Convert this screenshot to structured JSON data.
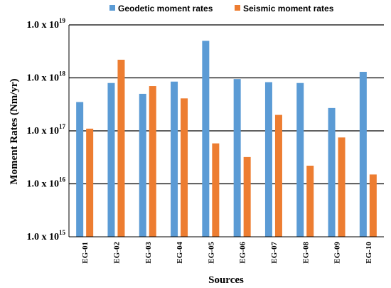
{
  "chart_data": {
    "type": "bar",
    "yscale": "log",
    "ylim": [
      1000000000000000.0,
      1e+19
    ],
    "xlabel": "Sources",
    "ylabel": "Moment Rates (Nm/yr)",
    "grid": "horizontal major lines",
    "legend_position": "top",
    "categories": [
      "EG-01",
      "EG-02",
      "EG-03",
      "EG-04",
      "EG-05",
      "EG-06",
      "EG-07",
      "EG-08",
      "EG-09",
      "EG-10"
    ],
    "series": [
      {
        "name": "Geodetic moment rates",
        "color": "#5b9bd5",
        "values": [
          3.5e+17,
          8e+17,
          5e+17,
          8.5e+17,
          5e+18,
          9.5e+17,
          8.3e+17,
          8e+17,
          2.7e+17,
          1.3e+18
        ]
      },
      {
        "name": "Seismic moment rates",
        "color": "#ed7d31",
        "values": [
          1.1e+17,
          2.2e+18,
          7e+17,
          4.1e+17,
          5.8e+16,
          3.2e+16,
          2e+17,
          2.2e+16,
          7.5e+16,
          1.5e+16
        ]
      }
    ],
    "yticks": [
      {
        "value": 1000000000000000.0,
        "base": "1.0 x 10",
        "exp": "15"
      },
      {
        "value": 1e+16,
        "base": "1.0 x 10",
        "exp": "16"
      },
      {
        "value": 1e+17,
        "base": "1.0 x 10",
        "exp": "17"
      },
      {
        "value": 1e+18,
        "base": "1.0 x 10",
        "exp": "18"
      },
      {
        "value": 1e+19,
        "base": "1.0 x 10",
        "exp": "19"
      }
    ]
  }
}
